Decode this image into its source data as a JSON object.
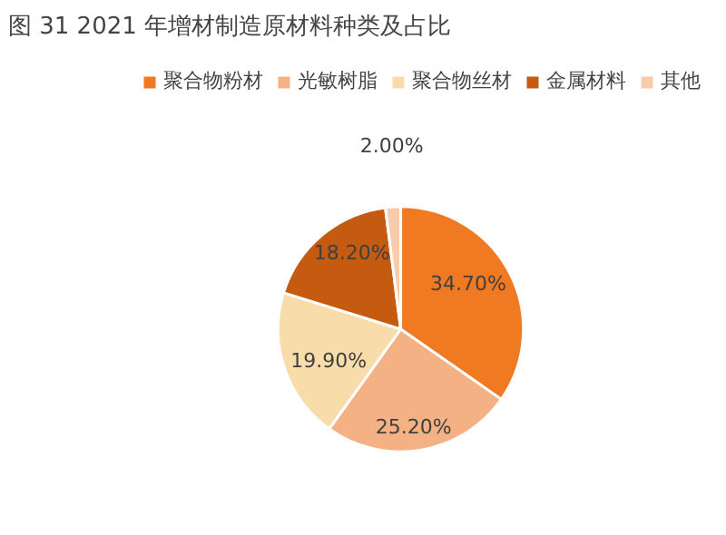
{
  "chart_data": {
    "type": "pie",
    "title": "图 31 2021 年增材制造原材料种类及占比",
    "categories": [
      "聚合物粉材",
      "光敏树脂",
      "聚合物丝材",
      "金属材料",
      "其他"
    ],
    "values": [
      34.7,
      25.2,
      19.9,
      18.2,
      2.0
    ],
    "colors": [
      "#ef7a22",
      "#f4b183",
      "#f8dcaa",
      "#c55a11",
      "#f8cbad"
    ],
    "value_labels": [
      "34.70%",
      "25.20%",
      "19.90%",
      "18.20%",
      "2.00%"
    ],
    "legend": "top"
  }
}
